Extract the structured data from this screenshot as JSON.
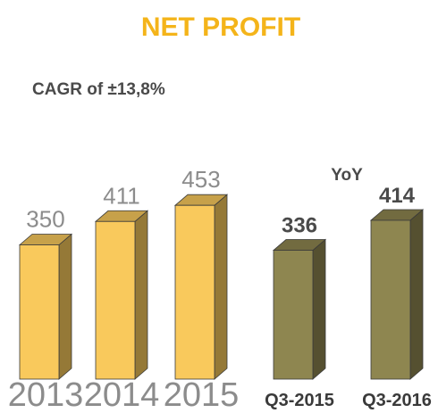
{
  "chart_data": [
    {
      "type": "bar",
      "title": "NET PROFIT",
      "subtitle": "CAGR of ±13,8%",
      "categories": [
        "2013",
        "2014",
        "2015"
      ],
      "values": [
        350,
        411,
        453
      ],
      "color": "#f9c95c"
    },
    {
      "type": "bar",
      "annotation": "YoY",
      "categories": [
        "Q3-2015",
        "Q3-2016"
      ],
      "values": [
        336,
        414
      ],
      "color": "#8e8650"
    }
  ]
}
